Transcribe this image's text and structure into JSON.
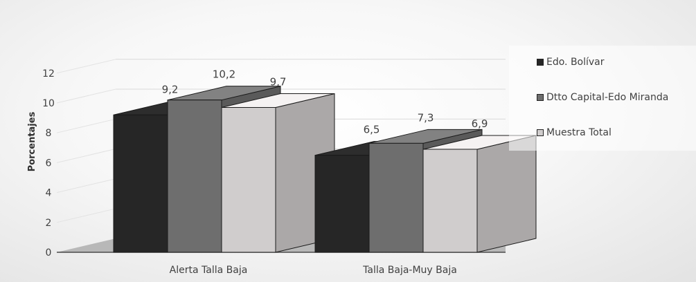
{
  "chart_data": {
    "type": "bar",
    "subtype": "3d-clustered-column",
    "categories": [
      "Alerta Talla Baja",
      "Talla Baja-Muy Baja"
    ],
    "series": [
      {
        "name": "Edo. Bolívar",
        "values": [
          9.2,
          6.5
        ],
        "value_labels": [
          "9,2",
          "6,5"
        ],
        "color": "#262626"
      },
      {
        "name": "Dtto Capital-Edo Miranda",
        "values": [
          10.2,
          7.3
        ],
        "value_labels": [
          "10,2",
          "7,3"
        ],
        "color": "#6e6e6e"
      },
      {
        "name": "Muestra Total",
        "values": [
          9.7,
          6.9
        ],
        "value_labels": [
          "9,7",
          "6,9"
        ],
        "color": "#d0cdcd"
      }
    ],
    "ylabel": "Porcentajes",
    "xlabel": "",
    "ylim": [
      0,
      12
    ],
    "yticks": [
      "0",
      "2",
      "4",
      "6",
      "8",
      "10",
      "12"
    ],
    "grid": true,
    "legend_position": "right"
  }
}
